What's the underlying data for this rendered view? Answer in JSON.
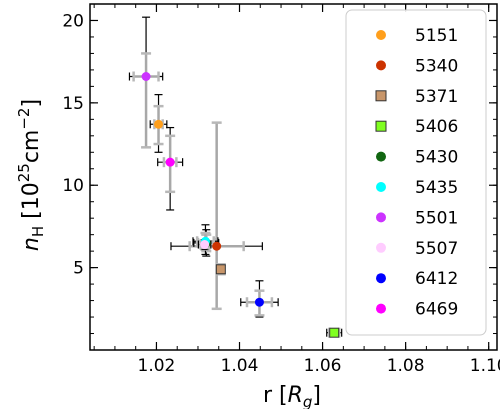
{
  "chart_data": {
    "type": "scatter",
    "xlabel_main": "r [",
    "xlabel_var": "R",
    "xlabel_sub": "g",
    "xlabel_end": "]",
    "ylabel_var": "n",
    "ylabel_sub": "H",
    "ylabel_unit_open": "[10",
    "ylabel_unit_exp": "25",
    "ylabel_unit_cm": "cm",
    "ylabel_unit_exp2": "−2",
    "ylabel_unit_close": "]",
    "xlim": [
      1.004,
      1.102
    ],
    "ylim": [
      0,
      21
    ],
    "xticks": [
      1.02,
      1.04,
      1.06,
      1.08,
      1.1
    ],
    "xtick_labels": [
      "1.02",
      "1.04",
      "1.06",
      "1.08",
      "1.10"
    ],
    "yticks": [
      5,
      10,
      15,
      20
    ],
    "ytick_labels": [
      "5",
      "10",
      "15",
      "20"
    ],
    "x_minor_step": 0.005,
    "y_minor_step": 1,
    "legend_position": "right",
    "series": [
      {
        "name": "5151",
        "color": "#ff9f1c",
        "marker": "circle",
        "x": 1.0205,
        "y": 13.7,
        "xerr_in": 0.001,
        "xerr_out": 0.002,
        "yerr_in": [
          12.5,
          14.8
        ],
        "yerr_out": [
          12.0,
          15.5
        ]
      },
      {
        "name": "5340",
        "color": "#cc3300",
        "marker": "circle",
        "x": 1.0345,
        "y": 6.3,
        "xerr_in": 0.0065,
        "xerr_out": 0.011,
        "yerr_in": [
          2.5,
          13.8
        ],
        "yerr_out": [
          2.5,
          13.8
        ]
      },
      {
        "name": "5371",
        "color": "#c8966a",
        "marker": "square",
        "x": 1.0355,
        "y": 4.9,
        "xerr_in": 0.0,
        "xerr_out": 0.0,
        "yerr_in": [
          4.6,
          5.2
        ],
        "yerr_out": [
          4.6,
          5.2
        ]
      },
      {
        "name": "5406",
        "color": "#80ff20",
        "marker": "square",
        "x": 1.0628,
        "y": 1.05,
        "xerr_in": 0.0012,
        "xerr_out": 0.0018,
        "yerr_in": [
          1.05,
          1.05
        ],
        "yerr_out": [
          1.05,
          1.05
        ]
      },
      {
        "name": "5430",
        "color": "#116611",
        "marker": "circle",
        "x": 1.032,
        "y": 6.5,
        "xerr_in": 0.002,
        "xerr_out": 0.003,
        "yerr_in": [
          6.0,
          7.0
        ],
        "yerr_out": [
          5.7,
          7.3
        ]
      },
      {
        "name": "5435",
        "color": "#00ffff",
        "marker": "circle",
        "x": 1.0318,
        "y": 6.6,
        "xerr_in": 0.002,
        "xerr_out": 0.003,
        "yerr_in": [
          6.1,
          7.1
        ],
        "yerr_out": [
          5.8,
          7.6
        ]
      },
      {
        "name": "5501",
        "color": "#cc33ff",
        "marker": "circle",
        "x": 1.0175,
        "y": 16.6,
        "xerr_in": 0.003,
        "xerr_out": 0.004,
        "yerr_in": [
          12.3,
          18.0
        ],
        "yerr_out": [
          12.3,
          20.2
        ]
      },
      {
        "name": "5507",
        "color": "#ffccff",
        "marker": "circle",
        "x": 1.0316,
        "y": 6.4,
        "xerr_in": 0.001,
        "xerr_out": 0.0015,
        "yerr_in": [
          6.2,
          6.6
        ],
        "yerr_out": [
          6.1,
          6.7
        ]
      },
      {
        "name": "6412",
        "color": "#0000ff",
        "marker": "circle",
        "x": 1.0448,
        "y": 2.9,
        "xerr_in": 0.003,
        "xerr_out": 0.0045,
        "yerr_in": [
          2.1,
          3.6
        ],
        "yerr_out": [
          2.0,
          4.2
        ]
      },
      {
        "name": "6469",
        "color": "#ff00ff",
        "marker": "circle",
        "x": 1.0233,
        "y": 11.4,
        "xerr_in": 0.0015,
        "xerr_out": 0.003,
        "yerr_in": [
          9.6,
          13.0
        ],
        "yerr_out": [
          8.5,
          13.5
        ]
      }
    ]
  }
}
